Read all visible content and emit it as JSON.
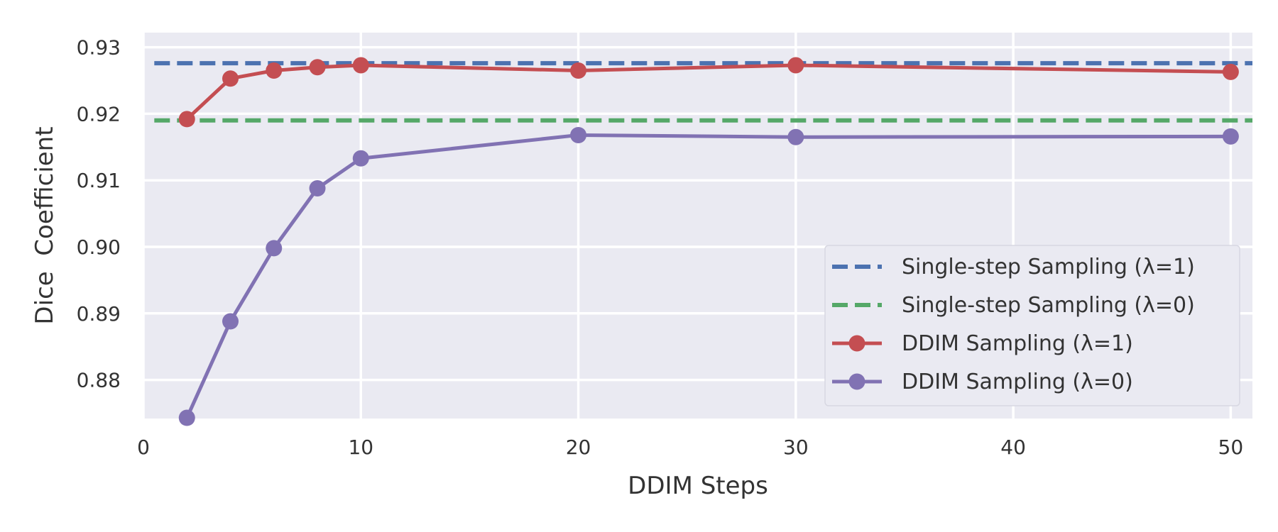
{
  "chart_data": {
    "type": "line",
    "title": "",
    "xlabel": "DDIM Steps",
    "ylabel": "Dice  Coefficient",
    "xlim": [
      0,
      51
    ],
    "ylim": [
      0.8742,
      0.9322
    ],
    "xticks": [
      0,
      10,
      20,
      30,
      40,
      50
    ],
    "xtick_labels": [
      "0",
      "10",
      "20",
      "30",
      "40",
      "50"
    ],
    "yticks": [
      0.88,
      0.89,
      0.9,
      0.91,
      0.92,
      0.93
    ],
    "ytick_labels": [
      "0.88",
      "0.89",
      "0.90",
      "0.91",
      "0.92",
      "0.93"
    ],
    "grid": true,
    "legend_position": "lower-right",
    "series": [
      {
        "name": "Single-step Sampling (λ=1)",
        "style": "dashed",
        "color": "#4c72b0",
        "x": [
          0.5,
          51
        ],
        "y": [
          0.9276,
          0.9276
        ]
      },
      {
        "name": "Single-step Sampling (λ=0)",
        "style": "dashed",
        "color": "#55a868",
        "x": [
          0.5,
          51
        ],
        "y": [
          0.919,
          0.919
        ]
      },
      {
        "name": "DDIM Sampling (λ=1)",
        "style": "solid-marker",
        "color": "#c44e52",
        "x": [
          2,
          4,
          6,
          8,
          10,
          20,
          30,
          50
        ],
        "y": [
          0.9192,
          0.9253,
          0.9265,
          0.927,
          0.9273,
          0.9265,
          0.9273,
          0.9263
        ]
      },
      {
        "name": "DDIM Sampling (λ=0)",
        "style": "solid-marker",
        "color": "#8172b3",
        "x": [
          2,
          4,
          6,
          8,
          10,
          20,
          30,
          50
        ],
        "y": [
          0.8743,
          0.8888,
          0.8998,
          0.9088,
          0.9133,
          0.9168,
          0.9165,
          0.9166
        ]
      }
    ]
  }
}
